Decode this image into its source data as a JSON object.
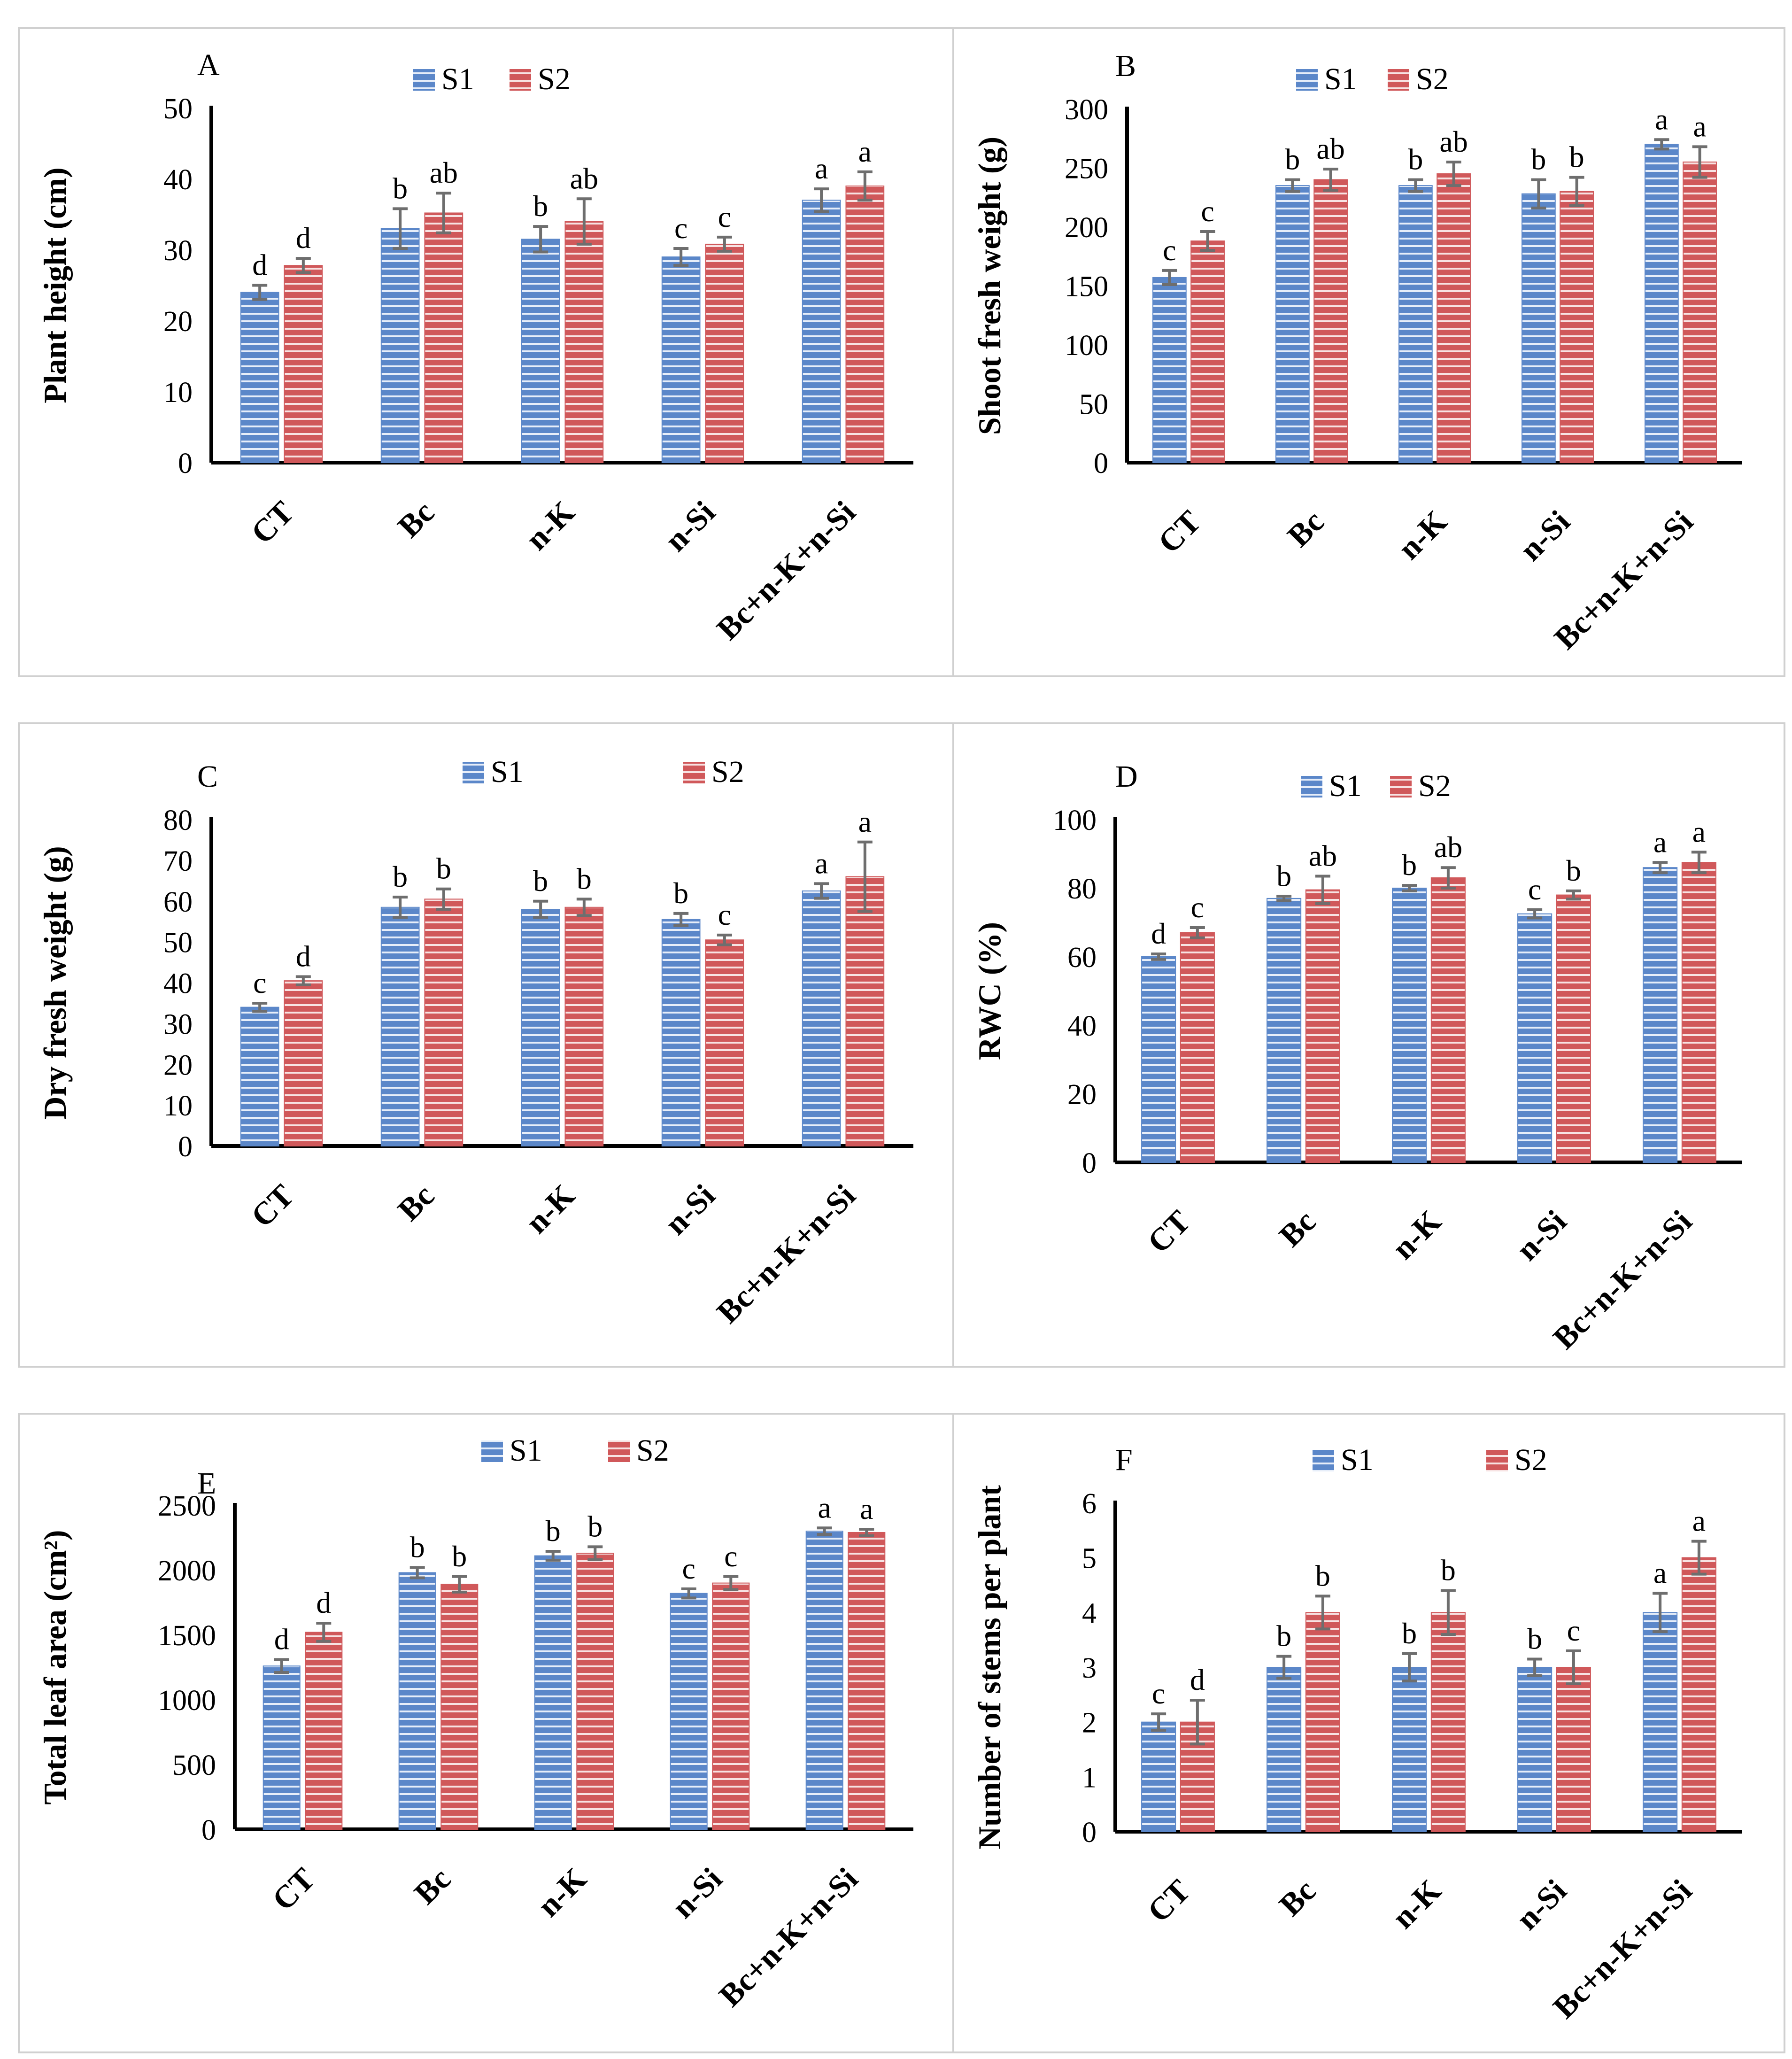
{
  "colors": {
    "s1": "#5b87c9",
    "s1_stripe": "#e7eef9",
    "s2": "#d0585a",
    "s2_stripe": "#f7e3e3",
    "error_bar": "#6e6e6e",
    "border": "#d0d0d0"
  },
  "chart_data": [
    {
      "panel_label": "A",
      "type": "bar",
      "ylabel": "Plant height (cm)",
      "ylim": [
        0,
        50
      ],
      "yticks": [
        0,
        10,
        20,
        30,
        40,
        50
      ],
      "categories": [
        "CT",
        "Bc",
        "n-K",
        "n-Si",
        "Bc+n-K+n-Si"
      ],
      "legend": [
        "S1",
        "S2"
      ],
      "series": [
        {
          "name": "S1",
          "values": [
            24,
            33,
            31.5,
            29,
            37
          ],
          "errors": [
            1,
            2.8,
            1.8,
            1.2,
            1.6
          ],
          "letters": [
            "d",
            "b",
            "b",
            "c",
            "a"
          ]
        },
        {
          "name": "S2",
          "values": [
            27.8,
            35.2,
            34,
            30.8,
            39
          ],
          "errors": [
            1,
            2.8,
            3.2,
            1,
            2
          ],
          "letters": [
            "d",
            "ab",
            "ab",
            "c",
            "a"
          ]
        }
      ]
    },
    {
      "panel_label": "B",
      "type": "bar",
      "ylabel": "Shoot fresh weight (g)",
      "ylim": [
        0,
        300
      ],
      "yticks": [
        0,
        50,
        100,
        150,
        200,
        250,
        300
      ],
      "categories": [
        "CT",
        "Bc",
        "n-K",
        "n-Si",
        "Bc+n-K+n-Si"
      ],
      "legend": [
        "S1",
        "S2"
      ],
      "series": [
        {
          "name": "S1",
          "values": [
            157,
            235,
            235,
            228,
            270
          ],
          "errors": [
            6,
            5,
            5,
            12,
            4
          ],
          "letters": [
            "c",
            "b",
            "b",
            "b",
            "a"
          ]
        },
        {
          "name": "S2",
          "values": [
            188,
            240,
            245,
            230,
            255
          ],
          "errors": [
            8,
            9,
            10,
            12,
            13
          ],
          "letters": [
            "c",
            "ab",
            "ab",
            "b",
            "a"
          ]
        }
      ]
    },
    {
      "panel_label": "C",
      "type": "bar",
      "ylabel": "Dry fresh weight (g)",
      "ylim": [
        0,
        80
      ],
      "yticks": [
        0,
        10,
        20,
        30,
        40,
        50,
        60,
        70,
        80
      ],
      "categories": [
        "CT",
        "Bc",
        "n-K",
        "n-Si",
        "Bc+n-K+n-Si"
      ],
      "legend": [
        "S1",
        "S2"
      ],
      "series": [
        {
          "name": "S1",
          "values": [
            34,
            58.5,
            58,
            55.5,
            62.5
          ],
          "errors": [
            1,
            2.5,
            2,
            1.5,
            1.8
          ],
          "letters": [
            "c",
            "b",
            "b",
            "b",
            "a"
          ]
        },
        {
          "name": "S2",
          "values": [
            40.5,
            60.5,
            58.5,
            50.5,
            66
          ],
          "errors": [
            1,
            2.5,
            2,
            1.2,
            8.5
          ],
          "letters": [
            "d",
            "b",
            "b",
            "c",
            "a"
          ]
        }
      ]
    },
    {
      "panel_label": "D",
      "type": "bar",
      "ylabel": "RWC (%)",
      "ylim": [
        0,
        100
      ],
      "yticks": [
        0,
        20,
        40,
        60,
        80,
        100
      ],
      "categories": [
        "CT",
        "Bc",
        "n-K",
        "n-Si",
        "Bc+n-K+n-Si"
      ],
      "legend": [
        "S1",
        "S2"
      ],
      "series": [
        {
          "name": "S1",
          "values": [
            60,
            77,
            80,
            72.5,
            86
          ],
          "errors": [
            0.8,
            0.6,
            0.8,
            1.2,
            1.5
          ],
          "letters": [
            "d",
            "b",
            "b",
            "c",
            "a"
          ]
        },
        {
          "name": "S2",
          "values": [
            67,
            79.5,
            83,
            78,
            87.5
          ],
          "errors": [
            1.5,
            4,
            3,
            1.2,
            3
          ],
          "letters": [
            "c",
            "ab",
            "ab",
            "b",
            "a"
          ]
        }
      ]
    },
    {
      "panel_label": "E",
      "type": "bar",
      "ylabel": "Total leaf area (cm²)",
      "ylim": [
        0,
        2500
      ],
      "yticks": [
        0,
        500,
        1000,
        1500,
        2000,
        2500
      ],
      "categories": [
        "CT",
        "Bc",
        "n-K",
        "n-Si",
        "Bc+n-K+n-Si"
      ],
      "legend": [
        "S1",
        "S2"
      ],
      "series": [
        {
          "name": "S1",
          "values": [
            1260,
            1980,
            2110,
            1820,
            2300
          ],
          "errors": [
            50,
            40,
            35,
            35,
            25
          ],
          "letters": [
            "d",
            "b",
            "b",
            "c",
            "a"
          ]
        },
        {
          "name": "S2",
          "values": [
            1520,
            1890,
            2130,
            1900,
            2290
          ],
          "errors": [
            70,
            60,
            50,
            50,
            25
          ],
          "letters": [
            "d",
            "b",
            "b",
            "c",
            "a"
          ]
        }
      ]
    },
    {
      "panel_label": "F",
      "type": "bar",
      "ylabel": "Number of stems per plant",
      "ylim": [
        0,
        6
      ],
      "yticks": [
        0,
        1,
        2,
        3,
        4,
        5,
        6
      ],
      "categories": [
        "CT",
        "Bc",
        "n-K",
        "n-Si",
        "Bc+n-K+n-Si"
      ],
      "legend": [
        "S1",
        "S2"
      ],
      "series": [
        {
          "name": "S1",
          "values": [
            2,
            3,
            3,
            3,
            4
          ],
          "errors": [
            0.15,
            0.2,
            0.25,
            0.15,
            0.35
          ],
          "letters": [
            "c",
            "b",
            "b",
            "b",
            "a"
          ]
        },
        {
          "name": "S2",
          "values": [
            2,
            4,
            4,
            3,
            5
          ],
          "errors": [
            0.4,
            0.3,
            0.4,
            0.3,
            0.3
          ],
          "letters": [
            "d",
            "b",
            "b",
            "c",
            "a"
          ]
        }
      ]
    }
  ]
}
